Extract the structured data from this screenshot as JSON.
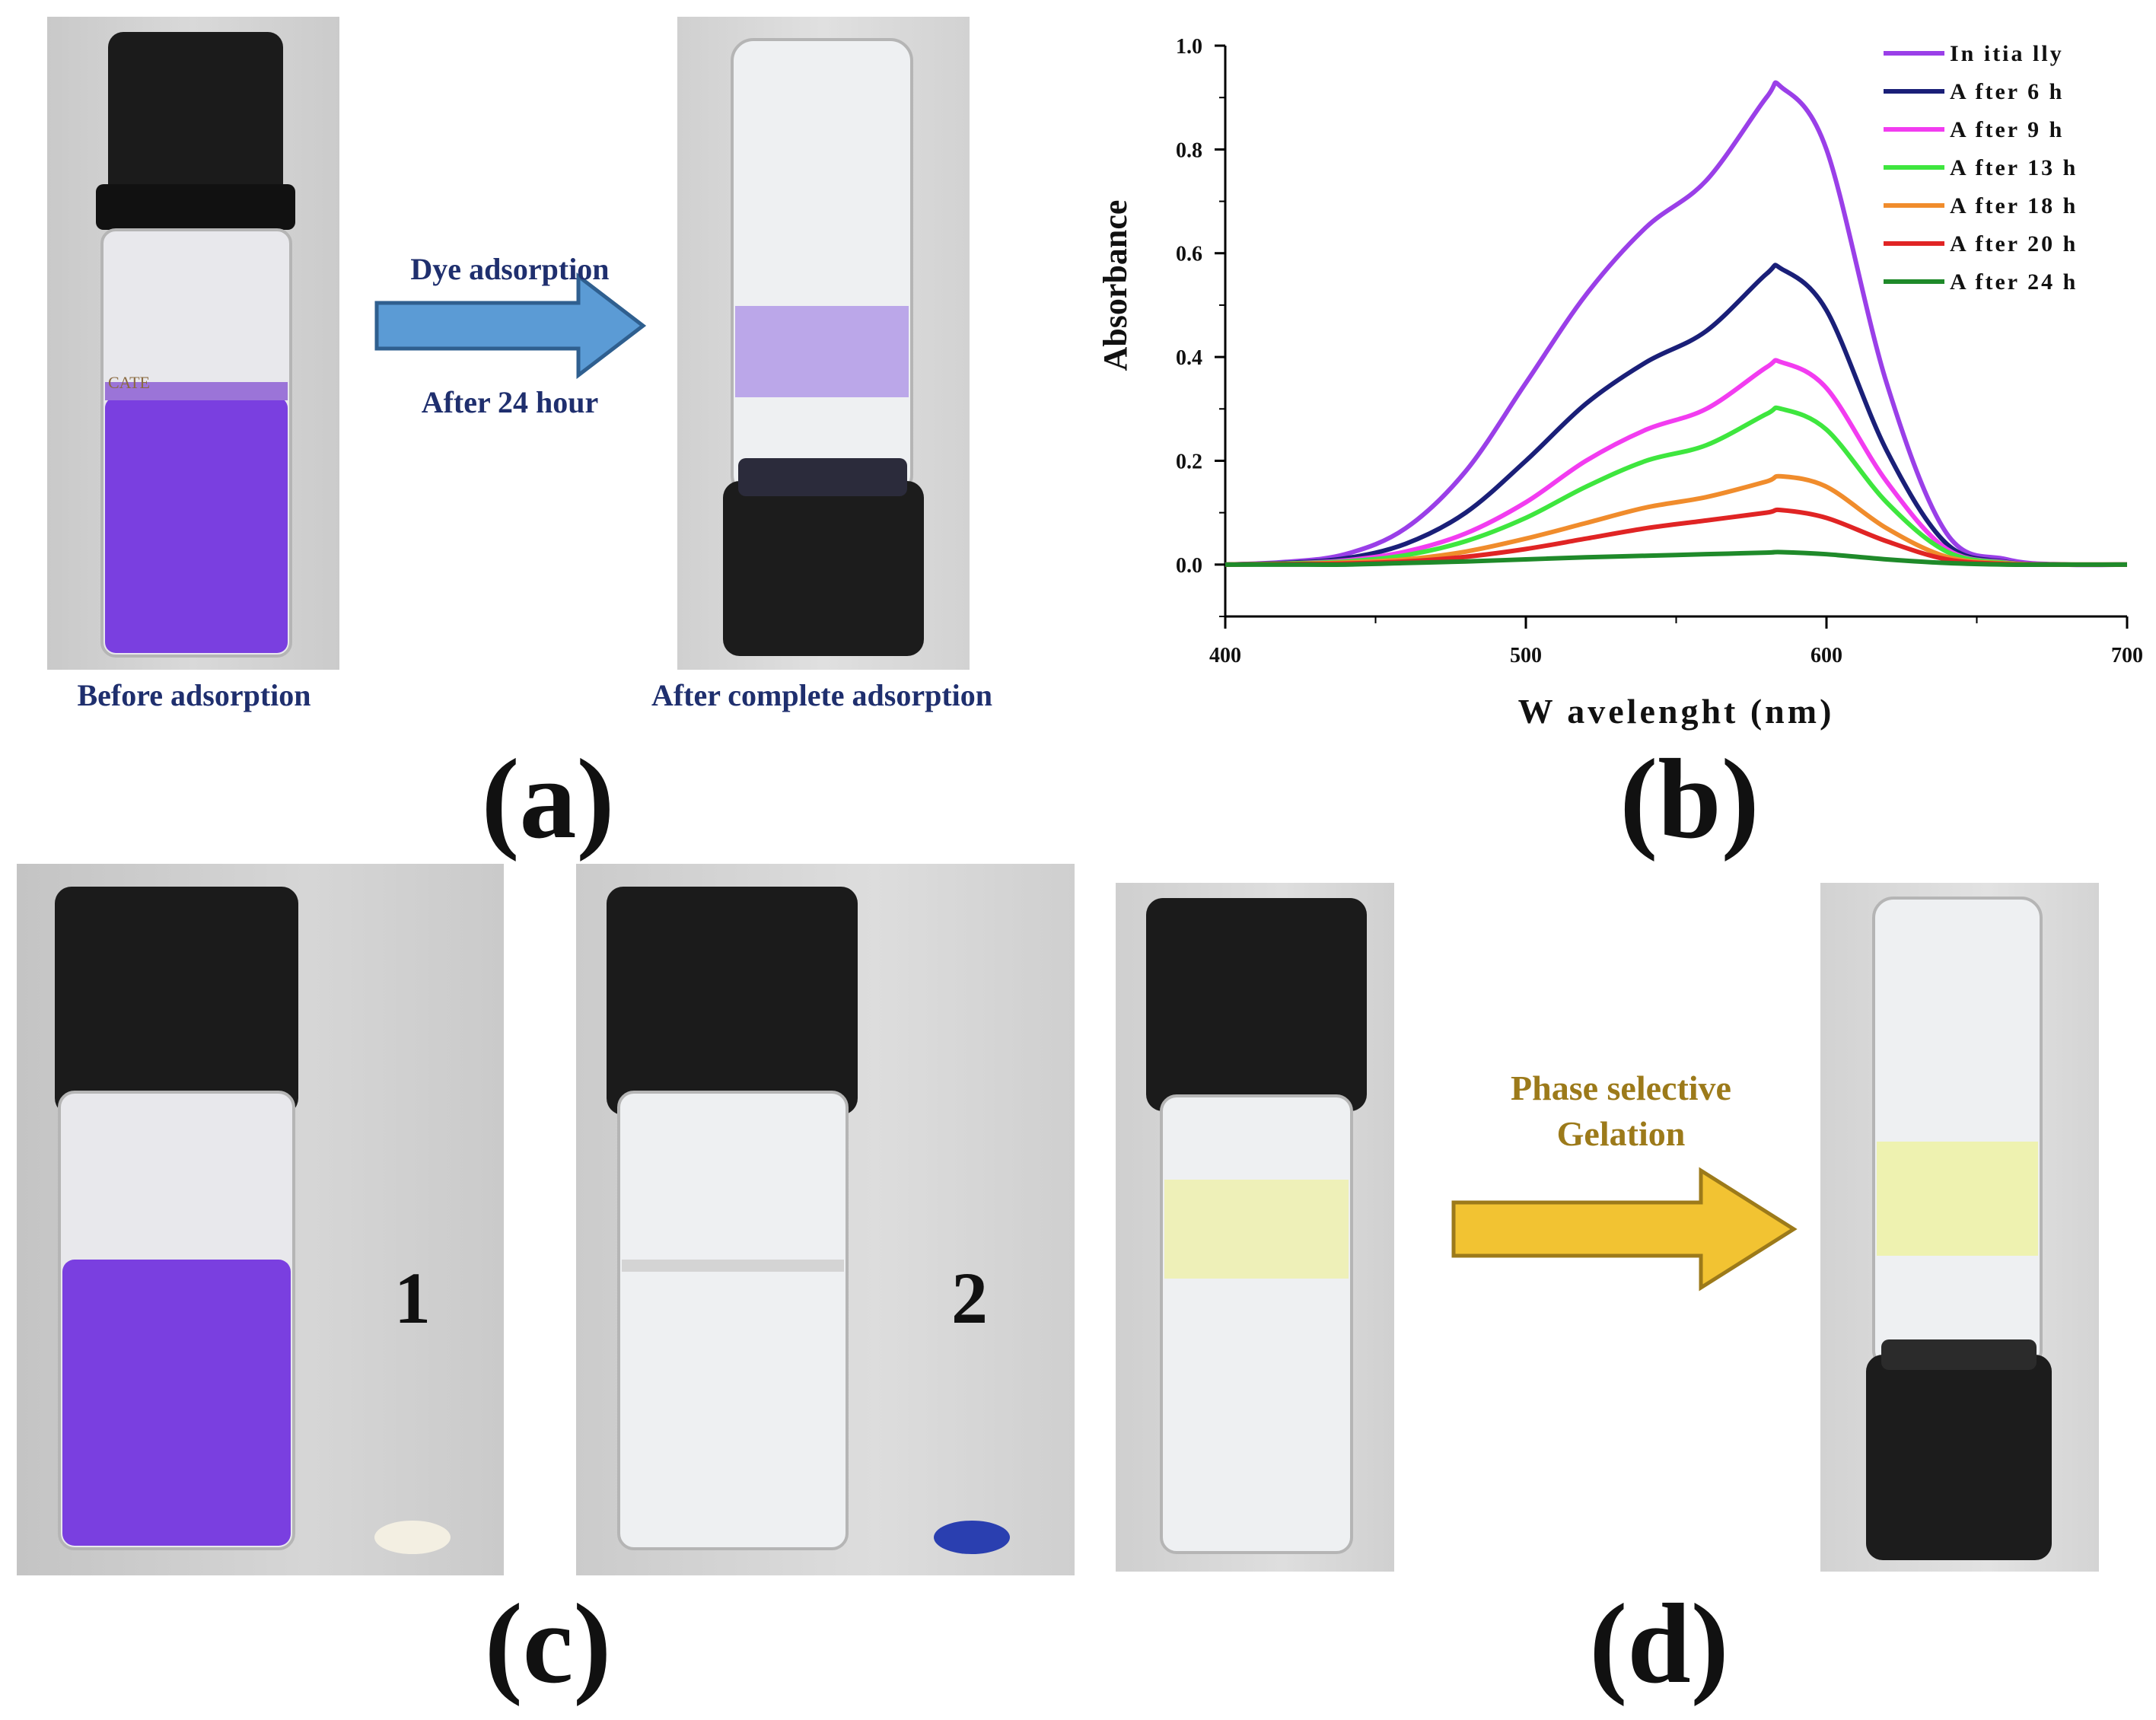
{
  "panel_a": {
    "label": "(a)",
    "arrow_top_text": "Dye adsorption",
    "arrow_bottom_text": "After 24 hour",
    "caption_before": "Before adsorption",
    "caption_after": "After complete adsorption",
    "vial_text": "CATE"
  },
  "panel_b": {
    "label": "(b)"
  },
  "panel_c": {
    "label": "(c)",
    "num_1": "1",
    "num_2": "2"
  },
  "panel_d": {
    "label": "(d)",
    "arrow_text_1": "Phase selective",
    "arrow_text_2": "Gelation"
  },
  "colors": {
    "dye_purple": "#7a3fe0",
    "arrow_blue": "#5b9bd5",
    "arrow_gold": "#f2c332"
  },
  "chart_data": {
    "type": "line",
    "title": "",
    "xlabel": "W avelenght (nm)",
    "ylabel": "Absorbance",
    "xlim": [
      400,
      700
    ],
    "ylim": [
      -0.1,
      1.0
    ],
    "xticks": [
      "400",
      "500",
      "600",
      "700"
    ],
    "yticks": [
      "0.0",
      "0.2",
      "0.4",
      "0.6",
      "0.8",
      "1.0"
    ],
    "x": [
      400,
      420,
      440,
      460,
      480,
      500,
      520,
      540,
      560,
      580,
      585,
      600,
      620,
      640,
      660,
      680,
      700
    ],
    "series": [
      {
        "name": "In itia lly",
        "color": "#9a3fe8",
        "values": [
          0.0,
          0.005,
          0.02,
          0.07,
          0.18,
          0.35,
          0.52,
          0.65,
          0.74,
          0.9,
          0.92,
          0.8,
          0.35,
          0.06,
          0.01,
          0.0,
          0.0
        ]
      },
      {
        "name": "A fter 6 h",
        "color": "#1a1f78",
        "values": [
          0.0,
          0.003,
          0.012,
          0.04,
          0.1,
          0.2,
          0.31,
          0.39,
          0.45,
          0.56,
          0.57,
          0.49,
          0.22,
          0.04,
          0.005,
          0.0,
          0.0
        ]
      },
      {
        "name": "A fter 9 h",
        "color": "#f23cf0",
        "values": [
          0.0,
          0.002,
          0.008,
          0.025,
          0.06,
          0.12,
          0.2,
          0.26,
          0.3,
          0.38,
          0.39,
          0.34,
          0.16,
          0.03,
          0.004,
          0.0,
          0.0
        ]
      },
      {
        "name": "A fter 13 h",
        "color": "#3ee63e",
        "values": [
          0.0,
          0.002,
          0.006,
          0.018,
          0.045,
          0.09,
          0.15,
          0.2,
          0.23,
          0.29,
          0.3,
          0.26,
          0.12,
          0.025,
          0.003,
          0.0,
          0.0
        ]
      },
      {
        "name": "A fter 18 h",
        "color": "#f08c2c",
        "values": [
          0.0,
          0.001,
          0.004,
          0.01,
          0.025,
          0.05,
          0.08,
          0.11,
          0.13,
          0.16,
          0.17,
          0.15,
          0.07,
          0.015,
          0.002,
          0.0,
          0.0
        ]
      },
      {
        "name": "A fter 20 h",
        "color": "#e02424",
        "values": [
          0.0,
          0.001,
          0.002,
          0.006,
          0.015,
          0.03,
          0.05,
          0.07,
          0.085,
          0.1,
          0.105,
          0.09,
          0.045,
          0.01,
          0.001,
          0.0,
          0.0
        ]
      },
      {
        "name": "A fter 24 h",
        "color": "#1f8a2a",
        "values": [
          0.0,
          0.0,
          0.0,
          0.003,
          0.006,
          0.01,
          0.014,
          0.017,
          0.02,
          0.023,
          0.024,
          0.02,
          0.01,
          0.003,
          0.0,
          0.0,
          0.0
        ]
      }
    ]
  }
}
